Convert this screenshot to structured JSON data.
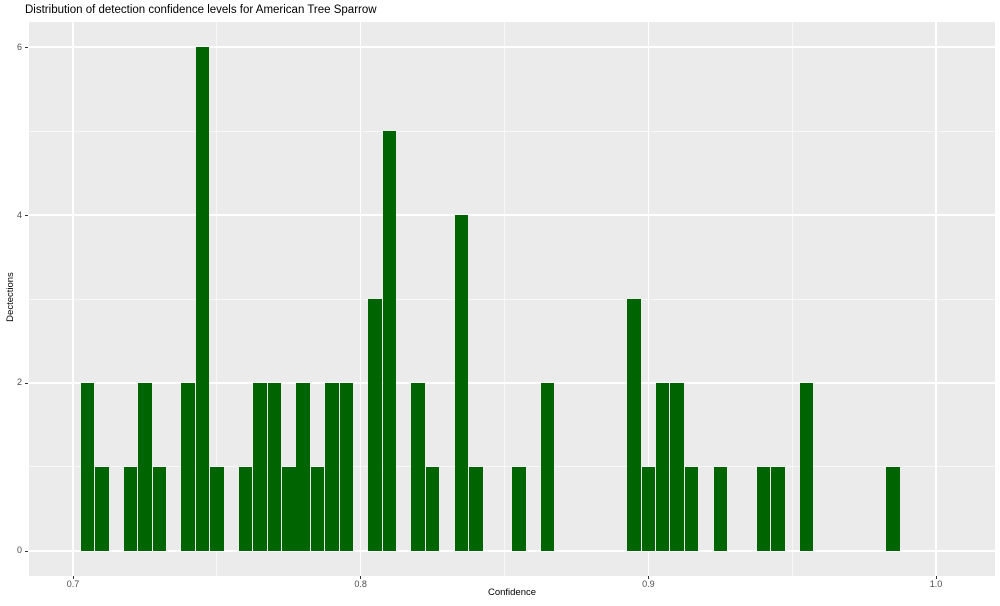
{
  "header": {
    "title": "Distribution of detection confidence levels for American Tree Sparrow"
  },
  "chart_data": {
    "type": "bar",
    "subtype": "histogram",
    "title": "Distribution of detection confidence levels for American Tree Sparrow",
    "xlabel": "Confidence",
    "ylabel": "Dectections",
    "legend": false,
    "grid": true,
    "panel_bg": "#EBEBEB",
    "grid_color": "#FFFFFF",
    "bar_color": "#006400",
    "tick_mark_color": "#333333",
    "tick_label_color": "#4D4D4D",
    "xlim": [
      0.6847,
      1.0205
    ],
    "ylim": [
      -0.3,
      6.3
    ],
    "bin_width": 0.005,
    "x_ticks": [
      {
        "v": 0.7,
        "label": "0.7"
      },
      {
        "v": 0.8,
        "label": "0.8"
      },
      {
        "v": 0.9,
        "label": "0.9"
      },
      {
        "v": 1.0,
        "label": "1.0"
      }
    ],
    "x_minor_ticks": [
      0.75,
      0.85,
      0.95
    ],
    "y_ticks": [
      {
        "v": 0,
        "label": "0"
      },
      {
        "v": 2,
        "label": "2"
      },
      {
        "v": 4,
        "label": "4"
      },
      {
        "v": 6,
        "label": "6"
      }
    ],
    "y_minor_ticks": [
      1,
      3,
      5
    ],
    "bins": [
      {
        "center": 0.705,
        "count": 2
      },
      {
        "center": 0.71,
        "count": 1
      },
      {
        "center": 0.72,
        "count": 1
      },
      {
        "center": 0.725,
        "count": 2
      },
      {
        "center": 0.73,
        "count": 1
      },
      {
        "center": 0.74,
        "count": 2
      },
      {
        "center": 0.745,
        "count": 6
      },
      {
        "center": 0.75,
        "count": 1
      },
      {
        "center": 0.76,
        "count": 1
      },
      {
        "center": 0.765,
        "count": 2
      },
      {
        "center": 0.77,
        "count": 2
      },
      {
        "center": 0.775,
        "count": 1
      },
      {
        "center": 0.78,
        "count": 2
      },
      {
        "center": 0.785,
        "count": 1
      },
      {
        "center": 0.79,
        "count": 2
      },
      {
        "center": 0.795,
        "count": 2
      },
      {
        "center": 0.805,
        "count": 3
      },
      {
        "center": 0.81,
        "count": 5
      },
      {
        "center": 0.82,
        "count": 2
      },
      {
        "center": 0.825,
        "count": 1
      },
      {
        "center": 0.835,
        "count": 4
      },
      {
        "center": 0.84,
        "count": 1
      },
      {
        "center": 0.855,
        "count": 1
      },
      {
        "center": 0.865,
        "count": 2
      },
      {
        "center": 0.895,
        "count": 3
      },
      {
        "center": 0.9,
        "count": 1
      },
      {
        "center": 0.905,
        "count": 2
      },
      {
        "center": 0.91,
        "count": 2
      },
      {
        "center": 0.915,
        "count": 1
      },
      {
        "center": 0.925,
        "count": 1
      },
      {
        "center": 0.94,
        "count": 1
      },
      {
        "center": 0.945,
        "count": 1
      },
      {
        "center": 0.955,
        "count": 2
      },
      {
        "center": 0.985,
        "count": 1
      }
    ],
    "total_detections": 63
  }
}
